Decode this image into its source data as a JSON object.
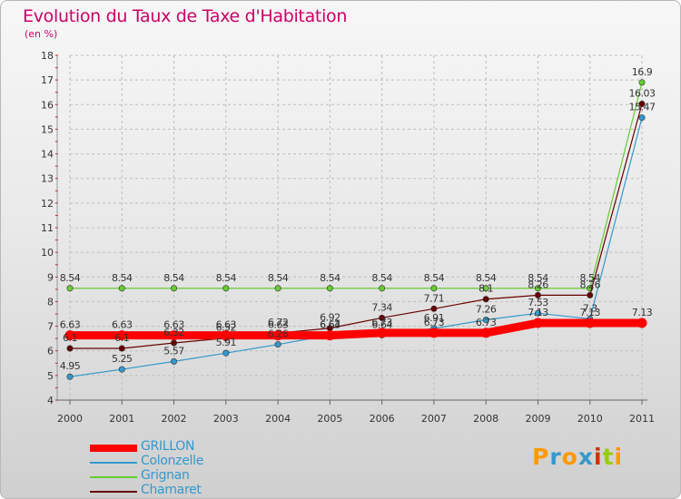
{
  "header": {
    "title": "Evolution du Taux de Taxe d'Habitation",
    "subtitle": "(en %)"
  },
  "brand": {
    "text": "Proxiti",
    "colors": [
      "#ff9900",
      "#3399cc",
      "#ff9900",
      "#3399cc",
      "#cc3300",
      "#99cc00",
      "#ff9900"
    ]
  },
  "chart_data": {
    "type": "line",
    "title": "Evolution du Taux de Taxe d'Habitation",
    "ylabel": "(en %)",
    "xlabel": "",
    "x": [
      "2000",
      "2001",
      "2002",
      "2003",
      "2004",
      "2005",
      "2006",
      "2007",
      "2008",
      "2009",
      "2010",
      "2011"
    ],
    "yticks": [
      "4",
      "5",
      "6",
      "7",
      "8",
      "9",
      "10",
      "11",
      "12",
      "13",
      "14",
      "15",
      "16",
      "17",
      "18"
    ],
    "ylim": [
      4,
      18
    ],
    "grid": true,
    "legend_position": "bottom-left",
    "series": [
      {
        "name": "GRILLON",
        "color": "#ff0000",
        "width": 9,
        "markers": false,
        "values": [
          6.63,
          6.63,
          6.63,
          6.63,
          6.63,
          6.63,
          6.73,
          6.73,
          6.73,
          7.13,
          7.13,
          7.13
        ],
        "labels": [
          "6.63",
          "6.63",
          "6.63",
          "6.63",
          "6.63",
          "6.63",
          "6.73",
          "6.73",
          "6.73",
          "7.13",
          "7.13",
          "7.13"
        ]
      },
      {
        "name": "Colonzelle",
        "color": "#3399cc",
        "width": 1.2,
        "markers": true,
        "values": [
          4.95,
          5.25,
          5.57,
          5.91,
          6.26,
          6.64,
          6.64,
          6.91,
          7.26,
          7.53,
          7.3,
          15.47
        ],
        "labels": [
          "4.95",
          "5.25",
          "5.57",
          "5.91",
          "6.26",
          "6.64",
          "6.64",
          "6.91",
          "7.26",
          "7.53",
          "7.3",
          "15.47"
        ]
      },
      {
        "name": "Grignan",
        "color": "#66cc33",
        "width": 1.2,
        "markers": true,
        "values": [
          8.54,
          8.54,
          8.54,
          8.54,
          8.54,
          8.54,
          8.54,
          8.54,
          8.54,
          8.54,
          8.54,
          16.9
        ],
        "labels": [
          "8.54",
          "8.54",
          "8.54",
          "8.54",
          "8.54",
          "8.54",
          "8.54",
          "8.54",
          "8.54",
          "8.54",
          "8.54",
          "16.9"
        ]
      },
      {
        "name": "Chamaret",
        "color": "#660000",
        "width": 1.2,
        "markers": true,
        "values": [
          6.1,
          6.1,
          6.32,
          6.52,
          6.72,
          6.92,
          7.34,
          7.71,
          8.1,
          8.26,
          8.26,
          16.03
        ],
        "labels": [
          "6.1",
          "6.1",
          "6.32",
          "6.52",
          "6.72",
          "6.92",
          "7.34",
          "7.71",
          "8.1",
          "8.26",
          "8.26",
          "16.03"
        ]
      }
    ]
  }
}
